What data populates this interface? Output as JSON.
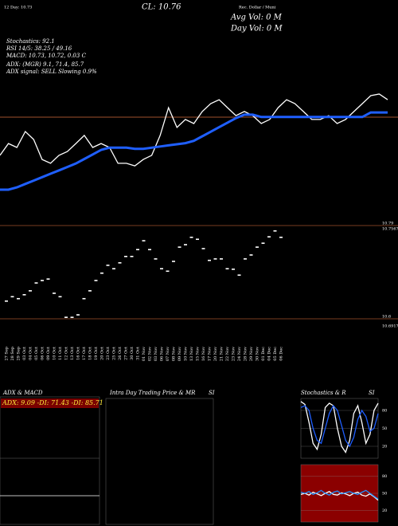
{
  "header": {
    "top_left": "12 Day: 10.73",
    "top_mid": "CL: 10.76",
    "top_right": "Rec. Dollar / Muni",
    "avg_vol": "Avg Vol: 0  M",
    "day_vol": "Day Vol: 0   M",
    "lines": [
      "Stochastics: 92.1",
      "RSI 14/5: 38.25 / 49.16",
      "MACD: 10.73, 10.72, 0.03 C",
      "ADX:                    (MGR) 9.1, 71.4, 85.7",
      "ADX  signal: SELL Slowing 0.9%"
    ]
  },
  "panels": {
    "adx_title": "ADX  & MACD",
    "adx_values": "ADX: 9.09 -DI: 71.43 -DI: 85.71",
    "intraday_title": "Intra  Day Trading Price  & MR",
    "intraday_si": "SI"
  },
  "chart_data": [
    {
      "type": "line",
      "x": [
        "27 Sep",
        "28 Sep",
        "29 Sep",
        "03 Oct",
        "04 Oct",
        "05 Oct",
        "06 Oct",
        "09 Oct",
        "10 Oct",
        "11 Oct",
        "12 Oct",
        "13 Oct",
        "16 Oct",
        "17 Oct",
        "18 Oct",
        "19 Oct",
        "20 Oct",
        "23 Oct",
        "25 Oct",
        "26 Oct",
        "27 Oct",
        "30 Oct",
        "31 Oct",
        "01 Nov",
        "02 Nov",
        "03 Nov",
        "06 Nov",
        "07 Nov",
        "08 Nov",
        "09 Nov",
        "10 Nov",
        "13 Nov",
        "15 Nov",
        "16 Nov",
        "17 Nov",
        "20 Nov",
        "21 Nov",
        "22 Nov",
        "23 Nov",
        "24 Nov",
        "28 Nov",
        "29 Nov",
        "30 Nov",
        "01 Dec",
        "04 Dec",
        "05 Dec",
        "06 Dec"
      ],
      "ylim": [
        0,
        100
      ],
      "hline": 48.4,
      "series": [
        {
          "color": "#ffffff",
          "values": [
            31.6,
            36.8,
            35.1,
            42.1,
            38.6,
            29.8,
            28.1,
            31.6,
            33.3,
            36.8,
            40.4,
            35.1,
            36.8,
            35.1,
            28.1,
            28.1,
            27.0,
            29.8,
            31.6,
            40.4,
            52.6,
            43.9,
            47.4,
            45.6,
            50.9,
            54.4,
            56.1,
            52.6,
            49.1,
            50.9,
            49.1,
            45.6,
            47.4,
            52.6,
            56.1,
            54.4,
            50.9,
            47.4,
            47.4,
            49.1,
            45.6,
            47.4,
            50.9,
            54.4,
            57.9,
            58.6,
            56.1
          ]
        },
        {
          "color": "#1f5fff",
          "values": [
            16.5,
            16.5,
            17.5,
            19,
            20.5,
            22,
            23.5,
            25,
            26.5,
            28,
            30,
            32,
            34,
            35,
            35,
            35,
            34.5,
            34.5,
            35,
            35.5,
            36,
            36.5,
            37,
            38,
            40,
            42,
            44,
            46,
            48,
            49.5,
            49.5,
            48.5,
            48.5,
            48.5,
            48.5,
            48.5,
            48.5,
            48.5,
            48.5,
            48.5,
            48.5,
            48.5,
            48.5,
            48.5,
            50.5,
            50.5,
            50.5
          ]
        }
      ]
    },
    {
      "type": "candle",
      "ylim": [
        10.6,
        10.79
      ],
      "yticks": [
        10.79,
        10.6
      ],
      "annotations": [
        "10.7567",
        "10.6917"
      ],
      "color": "#ffffff",
      "values": [
        10.636,
        10.645,
        10.641,
        10.649,
        10.657,
        10.673,
        10.678,
        10.681,
        10.652,
        10.645,
        10.603,
        10.603,
        10.608,
        10.641,
        10.657,
        10.678,
        10.693,
        10.709,
        10.702,
        10.714,
        10.727,
        10.727,
        10.741,
        10.759,
        10.741,
        10.722,
        10.702,
        10.697,
        10.717,
        10.746,
        10.751,
        10.766,
        10.762,
        10.743,
        10.719,
        10.722,
        10.722,
        10.702,
        10.701,
        10.689,
        10.722,
        10.73,
        10.746,
        10.754,
        10.767,
        10.779,
        10.766
      ]
    },
    {
      "type": "line",
      "title": "Stochastics & R",
      "subtitle": "SI",
      "ylim": [
        0,
        100
      ],
      "yticks": [
        20,
        50,
        80
      ],
      "background": "#000000",
      "series": [
        {
          "color": "#ffffff",
          "values": [
            95,
            90,
            60,
            25,
            15,
            40,
            85,
            92,
            88,
            50,
            20,
            10,
            30,
            75,
            88,
            60,
            25,
            40,
            80,
            92
          ]
        },
        {
          "color": "#1f5fff",
          "values": [
            85,
            88,
            80,
            50,
            30,
            25,
            50,
            75,
            88,
            80,
            55,
            30,
            20,
            35,
            65,
            80,
            70,
            45,
            50,
            75
          ]
        }
      ]
    },
    {
      "type": "line",
      "ylim": [
        0,
        100
      ],
      "yticks": [
        20,
        50,
        80
      ],
      "background": "#8b0000",
      "series": [
        {
          "color": "#ffffff",
          "values": [
            48,
            50,
            47,
            52,
            49,
            46,
            50,
            53,
            48,
            47,
            51,
            49,
            46,
            50,
            52,
            47,
            45,
            49,
            44,
            38
          ]
        },
        {
          "color": "#1f8fff",
          "values": [
            52,
            50,
            53,
            48,
            51,
            55,
            50,
            47,
            52,
            54,
            49,
            51,
            53,
            50,
            48,
            52,
            55,
            50,
            45,
            40
          ]
        }
      ]
    }
  ]
}
